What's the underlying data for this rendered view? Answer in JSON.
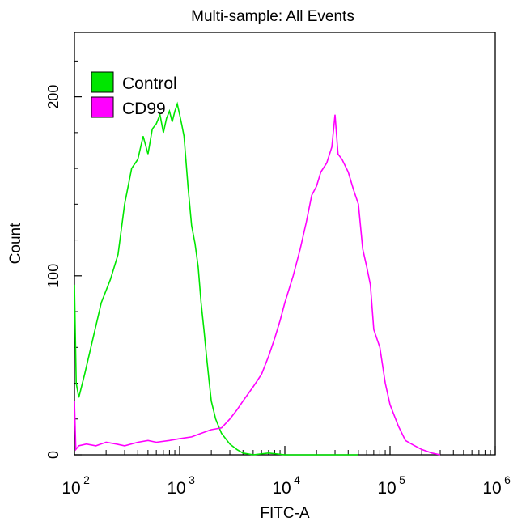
{
  "chart_data": {
    "type": "line",
    "subtype": "flow-cytometry-histogram-overlay",
    "title": "Multi-sample: All Events",
    "xlabel": "FITC-A",
    "ylabel": "Count",
    "x_scale": "log10",
    "xlim": [
      100,
      1000000
    ],
    "ylim": [
      0,
      236
    ],
    "x_ticks": [
      {
        "value": 100,
        "base": "10",
        "exp": "2"
      },
      {
        "value": 1000,
        "base": "10",
        "exp": "3"
      },
      {
        "value": 10000,
        "base": "10",
        "exp": "4"
      },
      {
        "value": 100000,
        "base": "10",
        "exp": "5"
      },
      {
        "value": 1000000,
        "base": "10",
        "exp": "6"
      }
    ],
    "y_ticks": [
      {
        "value": 0,
        "label": "0"
      },
      {
        "value": 100,
        "label": "100"
      },
      {
        "value": 200,
        "label": "200"
      }
    ],
    "legend": {
      "position": "top-left"
    },
    "series": [
      {
        "name": "Control",
        "color": "#00e600",
        "points": [
          [
            100,
            95
          ],
          [
            104,
            40
          ],
          [
            110,
            32
          ],
          [
            125,
            45
          ],
          [
            150,
            65
          ],
          [
            180,
            85
          ],
          [
            220,
            98
          ],
          [
            260,
            112
          ],
          [
            300,
            140
          ],
          [
            350,
            160
          ],
          [
            400,
            165
          ],
          [
            450,
            178
          ],
          [
            500,
            168
          ],
          [
            550,
            182
          ],
          [
            600,
            185
          ],
          [
            650,
            190
          ],
          [
            700,
            180
          ],
          [
            750,
            188
          ],
          [
            800,
            192
          ],
          [
            850,
            186
          ],
          [
            900,
            192
          ],
          [
            950,
            196
          ],
          [
            1000,
            190
          ],
          [
            1050,
            184
          ],
          [
            1100,
            178
          ],
          [
            1200,
            150
          ],
          [
            1300,
            128
          ],
          [
            1400,
            118
          ],
          [
            1500,
            105
          ],
          [
            1600,
            85
          ],
          [
            1700,
            70
          ],
          [
            1800,
            55
          ],
          [
            1900,
            42
          ],
          [
            2000,
            30
          ],
          [
            2200,
            20
          ],
          [
            2500,
            12
          ],
          [
            3000,
            6
          ],
          [
            3500,
            3
          ],
          [
            4000,
            1
          ],
          [
            5000,
            0
          ],
          [
            7000,
            1
          ],
          [
            10000,
            0
          ],
          [
            20000,
            0
          ],
          [
            40000,
            0
          ],
          [
            50000,
            0
          ]
        ]
      },
      {
        "name": "CD99",
        "color": "#ff00ff",
        "points": [
          [
            100,
            30
          ],
          [
            103,
            3
          ],
          [
            110,
            5
          ],
          [
            130,
            6
          ],
          [
            160,
            5
          ],
          [
            200,
            7
          ],
          [
            250,
            6
          ],
          [
            300,
            5
          ],
          [
            400,
            7
          ],
          [
            500,
            8
          ],
          [
            600,
            7
          ],
          [
            800,
            8
          ],
          [
            1000,
            9
          ],
          [
            1300,
            10
          ],
          [
            1600,
            12
          ],
          [
            2000,
            14
          ],
          [
            2500,
            15
          ],
          [
            3000,
            20
          ],
          [
            3500,
            25
          ],
          [
            4000,
            30
          ],
          [
            5000,
            38
          ],
          [
            6000,
            45
          ],
          [
            7000,
            55
          ],
          [
            8000,
            65
          ],
          [
            9000,
            75
          ],
          [
            10000,
            85
          ],
          [
            12000,
            100
          ],
          [
            14000,
            115
          ],
          [
            16000,
            130
          ],
          [
            18000,
            145
          ],
          [
            20000,
            150
          ],
          [
            22000,
            158
          ],
          [
            25000,
            163
          ],
          [
            28000,
            172
          ],
          [
            30000,
            190
          ],
          [
            32000,
            168
          ],
          [
            35000,
            165
          ],
          [
            40000,
            158
          ],
          [
            45000,
            148
          ],
          [
            50000,
            140
          ],
          [
            55000,
            115
          ],
          [
            60000,
            105
          ],
          [
            65000,
            95
          ],
          [
            70000,
            70
          ],
          [
            80000,
            60
          ],
          [
            90000,
            40
          ],
          [
            100000,
            28
          ],
          [
            120000,
            16
          ],
          [
            140000,
            8
          ],
          [
            160000,
            6
          ],
          [
            200000,
            3
          ],
          [
            250000,
            1
          ],
          [
            300000,
            0
          ]
        ]
      }
    ]
  }
}
